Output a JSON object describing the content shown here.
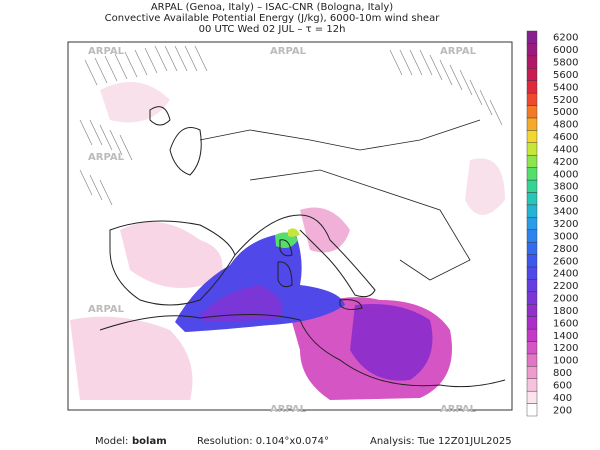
{
  "header": {
    "line1": "ARPAL (Genoa, Italy)  –  ISAC-CNR (Bologna, Italy)",
    "line2": "Convective Available Potential Energy (J/kg), 6000-10m wind shear",
    "line3": "00 UTC Wed 02 JUL  –  τ = 12h"
  },
  "watermark": "ARPAL",
  "colorbar": {
    "entries": [
      {
        "value": 200,
        "color": "#ffffff"
      },
      {
        "value": 400,
        "color": "#fbe4ee"
      },
      {
        "value": 600,
        "color": "#f5c4dc"
      },
      {
        "value": 800,
        "color": "#ee9ccd"
      },
      {
        "value": 1000,
        "color": "#e276c6"
      },
      {
        "value": 1200,
        "color": "#d655c4"
      },
      {
        "value": 1400,
        "color": "#c43ac6"
      },
      {
        "value": 1600,
        "color": "#ab2ec8"
      },
      {
        "value": 1800,
        "color": "#9230cc"
      },
      {
        "value": 2000,
        "color": "#7a36d6"
      },
      {
        "value": 2200,
        "color": "#643ee0"
      },
      {
        "value": 2400,
        "color": "#5048e8"
      },
      {
        "value": 2600,
        "color": "#3e58ee"
      },
      {
        "value": 2800,
        "color": "#336cf0"
      },
      {
        "value": 3000,
        "color": "#2e84ee"
      },
      {
        "value": 3200,
        "color": "#2a9ce6"
      },
      {
        "value": 3400,
        "color": "#27b4d4"
      },
      {
        "value": 3600,
        "color": "#28c6b6"
      },
      {
        "value": 3800,
        "color": "#34d494"
      },
      {
        "value": 4000,
        "color": "#56de6c"
      },
      {
        "value": 4200,
        "color": "#8ee44c"
      },
      {
        "value": 4400,
        "color": "#c6e63a"
      },
      {
        "value": 4600,
        "color": "#f0d830"
      },
      {
        "value": 4800,
        "color": "#f6aa2a"
      },
      {
        "value": 5000,
        "color": "#f47a2a"
      },
      {
        "value": 5200,
        "color": "#ee4a30"
      },
      {
        "value": 5400,
        "color": "#e02a3c"
      },
      {
        "value": 5600,
        "color": "#c81c52"
      },
      {
        "value": 5800,
        "color": "#b01868"
      },
      {
        "value": 6000,
        "color": "#9a1c7e"
      },
      {
        "value": 6200,
        "color": "#862290"
      }
    ]
  },
  "footer": {
    "model_label": "Model:",
    "model": "bolam",
    "resolution": "Resolution: 0.104°x0.074°",
    "analysis": "Analysis: Tue 12Z01JUL2025"
  }
}
